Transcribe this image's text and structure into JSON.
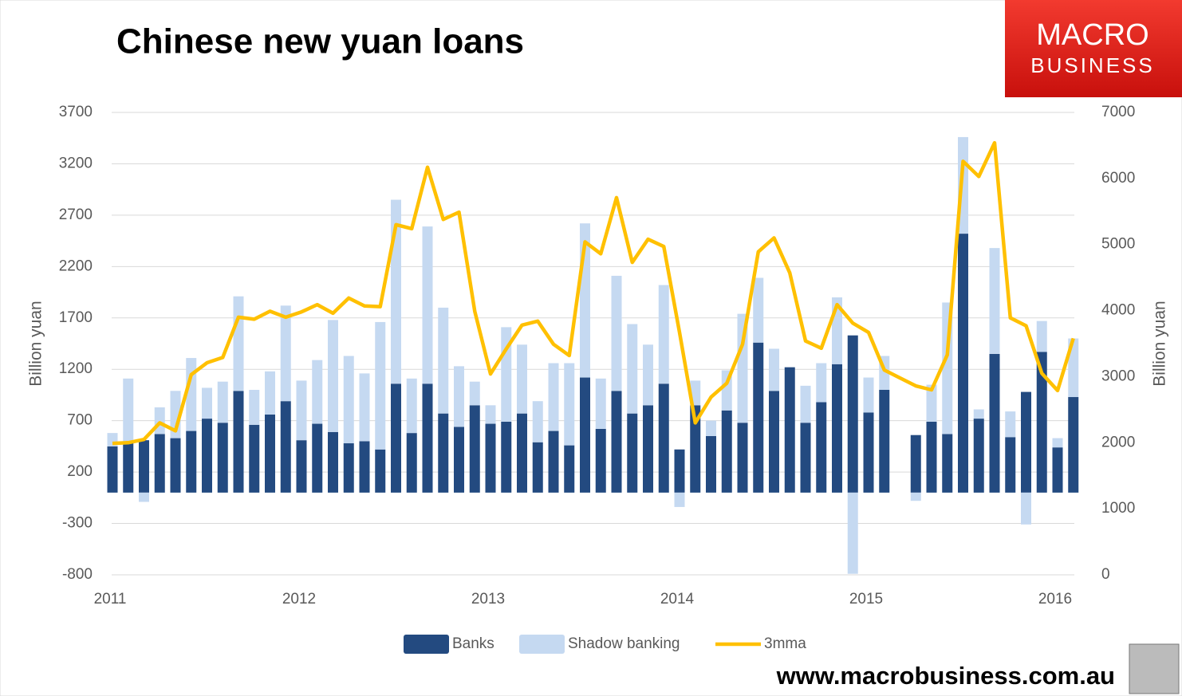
{
  "chart_data": {
    "type": "bar-line",
    "title": "Chinese new yuan loans",
    "ylabel": "Billion yuan",
    "y2label": "Billion yuan",
    "categories": [
      "2011",
      null,
      null,
      null,
      null,
      null,
      null,
      null,
      null,
      null,
      null,
      null,
      "2012",
      null,
      null,
      null,
      null,
      null,
      null,
      null,
      null,
      null,
      null,
      null,
      "2013",
      null,
      null,
      null,
      null,
      null,
      null,
      null,
      null,
      null,
      null,
      null,
      "2014",
      null,
      null,
      null,
      null,
      null,
      null,
      null,
      null,
      null,
      null,
      null,
      "2015",
      null,
      null,
      null,
      null,
      null,
      null,
      null,
      null,
      null,
      null,
      null,
      "2016",
      null
    ],
    "series": [
      {
        "name": "Banks",
        "type": "bar",
        "color": "#234a80",
        "values": [
          450,
          500,
          510,
          570,
          530,
          600,
          720,
          680,
          990,
          660,
          760,
          890,
          510,
          670,
          590,
          480,
          500,
          420,
          1060,
          580,
          1060,
          770,
          640,
          850,
          670,
          690,
          770,
          490,
          600,
          460,
          1120,
          620,
          990,
          770,
          850,
          1060,
          420,
          850,
          550,
          800,
          680,
          1460,
          990,
          1220,
          680,
          880,
          1250,
          1530,
          780,
          1000,
          null,
          560,
          690,
          570,
          2520,
          720,
          1350,
          540,
          980,
          1370,
          440,
          930
        ]
      },
      {
        "name": "Shadow banking",
        "type": "bar",
        "color": "#c5d9f1",
        "values": [
          130,
          610,
          -90,
          260,
          460,
          710,
          300,
          400,
          920,
          340,
          420,
          930,
          580,
          620,
          1090,
          850,
          660,
          1240,
          1790,
          530,
          1530,
          1030,
          590,
          230,
          180,
          920,
          670,
          400,
          660,
          800,
          1500,
          490,
          1120,
          870,
          590,
          960,
          -140,
          240,
          150,
          390,
          1060,
          630,
          410,
          0,
          360,
          380,
          650,
          -790,
          340,
          330,
          null,
          -80,
          360,
          1280,
          940,
          90,
          1030,
          250,
          -310,
          300,
          90,
          570
        ]
      },
      {
        "name": "3mma",
        "type": "line",
        "axis": "y2",
        "color": "#ffc000",
        "values": [
          1990,
          2000,
          2050,
          2300,
          2180,
          3030,
          3210,
          3290,
          3900,
          3870,
          3990,
          3900,
          3980,
          4090,
          3960,
          4190,
          4070,
          4060,
          5300,
          5240,
          6170,
          5380,
          5490,
          3990,
          3040,
          3420,
          3780,
          3840,
          3490,
          3320,
          5040,
          4860,
          5710,
          4730,
          5080,
          4970,
          3670,
          2300,
          2690,
          2900,
          3490,
          4890,
          5100,
          4570,
          3540,
          3430,
          4090,
          3810,
          3670,
          3100,
          2980,
          2860,
          2800,
          3330,
          6260,
          6030,
          6540,
          3890,
          3770,
          3050,
          2790,
          3580
        ]
      }
    ],
    "ylim": [
      -800,
      3700
    ],
    "yticks": [
      -800,
      -300,
      200,
      700,
      1200,
      1700,
      2200,
      2700,
      3200,
      3700
    ],
    "y2lim": [
      0,
      7000
    ],
    "y2ticks": [
      0,
      1000,
      2000,
      3000,
      4000,
      5000,
      6000,
      7000
    ],
    "grid": true,
    "legend": "bottom"
  },
  "logo": {
    "line1": "MACRO",
    "line2": "BUSINESS"
  },
  "footer": "www.macrobusiness.com.au"
}
